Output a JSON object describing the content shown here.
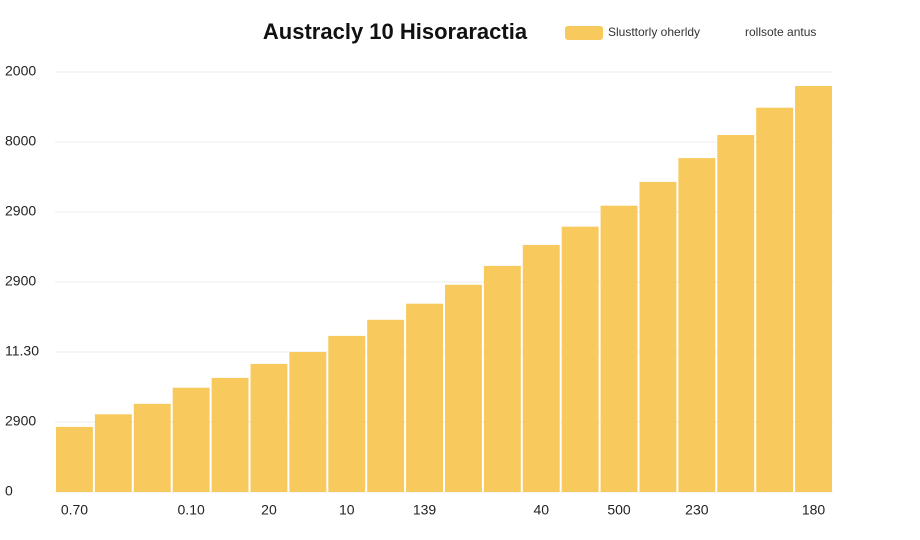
{
  "chart_data": {
    "type": "bar",
    "title": "Austracly 10 Hisoraractia",
    "series": [
      {
        "name": "Slusttorly oherldy",
        "color": "#f8c95c",
        "values": [
          0.93,
          1.11,
          1.26,
          1.49,
          1.63,
          1.83,
          2.0,
          2.23,
          2.46,
          2.69,
          2.96,
          3.23,
          3.53,
          3.79,
          4.09,
          4.43,
          4.77,
          5.1,
          5.49,
          5.8
        ]
      }
    ],
    "legend_note": "rollsote antus",
    "categories": [
      "0.70",
      null,
      null,
      "0.10",
      null,
      "20",
      null,
      "10",
      null,
      "139",
      null,
      null,
      "40",
      null,
      "500",
      null,
      "230",
      null,
      null,
      "180"
    ],
    "ylim": [
      0,
      6
    ],
    "yticks": [
      0,
      {
        "value": 1,
        "label": "2900"
      },
      {
        "value": 2,
        "label": "11.30"
      },
      {
        "value": 3,
        "label": "2900"
      },
      {
        "value": 4,
        "label": "2900"
      },
      {
        "value": 5,
        "label": "8000"
      },
      {
        "value": 6,
        "label": "2000"
      }
    ],
    "grid": true
  }
}
